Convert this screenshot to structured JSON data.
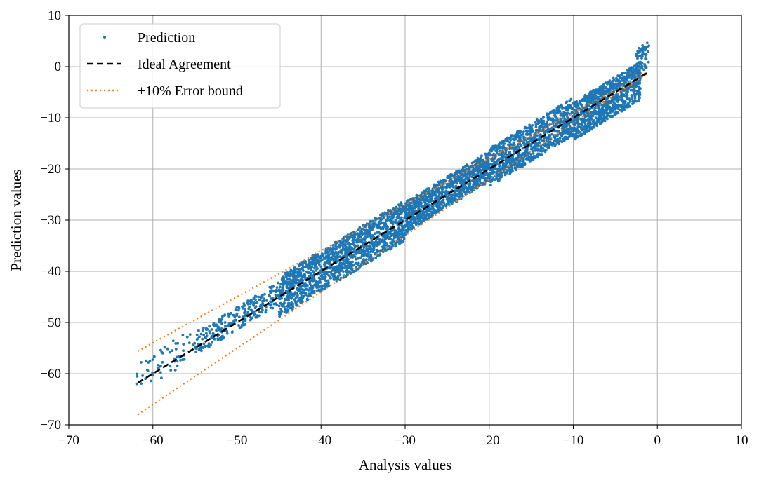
{
  "chart_data": {
    "type": "scatter",
    "title": "",
    "xlabel": "Analysis values",
    "ylabel": "Prediction values",
    "xlim": [
      -70,
      10
    ],
    "ylim": [
      -70,
      10
    ],
    "xticks": [
      "−70",
      "−60",
      "−50",
      "−40",
      "−30",
      "−20",
      "−10",
      "0",
      "10"
    ],
    "yticks": [
      "10",
      "0",
      "−10",
      "−20",
      "−30",
      "−40",
      "−50",
      "−60",
      "−70"
    ],
    "grid": true,
    "legend_position": "top-left",
    "series": [
      {
        "name": "Prediction",
        "kind": "scatter",
        "color": "#1f77b4",
        "approx_x_range": [
          -62,
          -1
        ],
        "clusters": [
          {
            "x": [
              -62,
              -55
            ],
            "dy": [
              -2,
              4
            ],
            "n": 60
          },
          {
            "x": [
              -55,
              -45
            ],
            "dy": [
              -1.5,
              3
            ],
            "n": 260
          },
          {
            "x": [
              -45,
              -30
            ],
            "dy": [
              -4,
              4
            ],
            "n": 1400
          },
          {
            "x": [
              -30,
              -20
            ],
            "dy": [
              -2.5,
              3.5
            ],
            "n": 1000
          },
          {
            "x": [
              -20,
              -10
            ],
            "dy": [
              -3.5,
              4
            ],
            "n": 900
          },
          {
            "x": [
              -10,
              -2
            ],
            "dy": [
              -4.5,
              3
            ],
            "n": 900
          },
          {
            "x": [
              -2.5,
              -1
            ],
            "dy": [
              1,
              6
            ],
            "n": 60
          }
        ]
      },
      {
        "name": "Ideal Agreement",
        "kind": "line",
        "color": "#000000",
        "dash": "dashed",
        "x": [
          -61.8,
          -1.2
        ],
        "y": [
          -61.8,
          -1.2
        ]
      },
      {
        "name": "±10% Error bound",
        "kind": "line",
        "color": "#ff7f0e",
        "dash": "dotted",
        "lines": [
          {
            "x": [
              -61.8,
              -1.2
            ],
            "y": [
              -55.6,
              -1.08
            ]
          },
          {
            "x": [
              -61.8,
              -1.2
            ],
            "y": [
              -68.0,
              -1.32
            ]
          }
        ]
      }
    ]
  }
}
